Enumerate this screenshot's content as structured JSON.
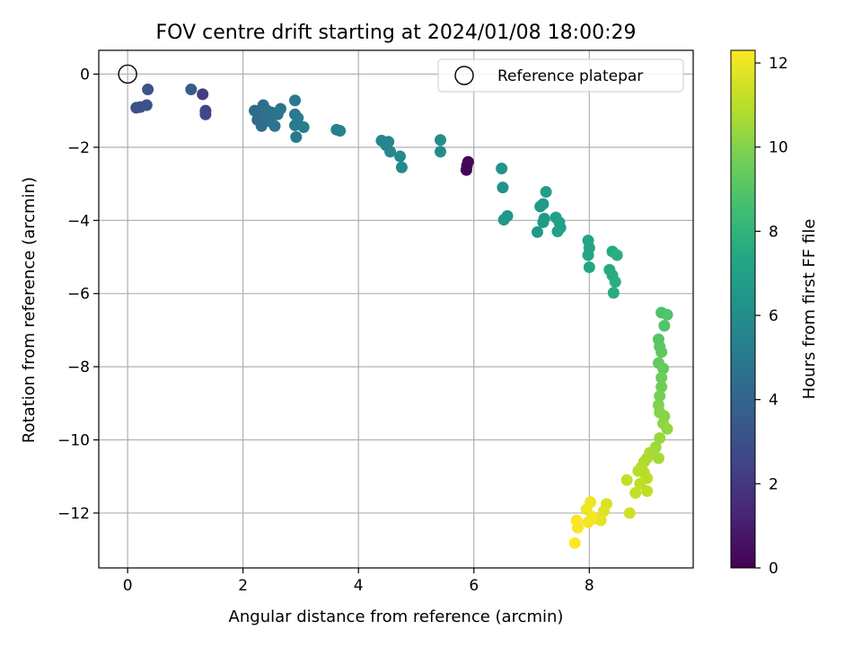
{
  "chart_data": {
    "type": "scatter",
    "title": "FOV centre drift starting at 2024/01/08 18:00:29",
    "xlabel": "Angular distance from reference (arcmin)",
    "ylabel": "Rotation from reference (arcmin)",
    "xlim": [
      -0.5,
      9.8
    ],
    "ylim": [
      -13.5,
      0.65
    ],
    "xticks": [
      0,
      2,
      4,
      6,
      8
    ],
    "yticks": [
      0,
      -2,
      -4,
      -6,
      -8,
      -10,
      -12
    ],
    "grid": true,
    "legend": {
      "placement": "top-right",
      "entries": [
        "Reference platepar"
      ]
    },
    "reference": {
      "x": 0,
      "y": 0,
      "label": "Reference platepar"
    },
    "colorbar": {
      "label": "Hours from first FF file",
      "range": [
        0,
        12.3
      ],
      "ticks": [
        0,
        2,
        4,
        6,
        8,
        10,
        12
      ],
      "colormap": "viridis"
    },
    "points": [
      {
        "x": 5.87,
        "y": -2.62,
        "c": 0.0
      },
      {
        "x": 5.88,
        "y": -2.5,
        "c": 0.1
      },
      {
        "x": 5.9,
        "y": -2.4,
        "c": 0.2
      },
      {
        "x": 1.3,
        "y": -0.55,
        "c": 2.2
      },
      {
        "x": 1.35,
        "y": -1.0,
        "c": 2.6
      },
      {
        "x": 1.35,
        "y": -1.1,
        "c": 2.6
      },
      {
        "x": 0.15,
        "y": -0.92,
        "c": 3.0
      },
      {
        "x": 0.22,
        "y": -0.9,
        "c": 3.0
      },
      {
        "x": 0.33,
        "y": -0.85,
        "c": 3.1
      },
      {
        "x": 0.35,
        "y": -0.42,
        "c": 3.2
      },
      {
        "x": 1.1,
        "y": -0.42,
        "c": 3.5
      },
      {
        "x": 2.2,
        "y": -1.0,
        "c": 4.2
      },
      {
        "x": 2.25,
        "y": -1.25,
        "c": 4.3
      },
      {
        "x": 2.3,
        "y": -1.1,
        "c": 4.3
      },
      {
        "x": 2.32,
        "y": -1.42,
        "c": 4.4
      },
      {
        "x": 2.35,
        "y": -0.85,
        "c": 4.4
      },
      {
        "x": 2.4,
        "y": -1.2,
        "c": 4.5
      },
      {
        "x": 2.42,
        "y": -1.0,
        "c": 4.5
      },
      {
        "x": 2.48,
        "y": -1.3,
        "c": 4.6
      },
      {
        "x": 2.5,
        "y": -1.05,
        "c": 4.6
      },
      {
        "x": 2.55,
        "y": -1.42,
        "c": 4.7
      },
      {
        "x": 2.6,
        "y": -1.1,
        "c": 4.7
      },
      {
        "x": 2.65,
        "y": -0.95,
        "c": 4.8
      },
      {
        "x": 2.9,
        "y": -0.72,
        "c": 4.9
      },
      {
        "x": 2.9,
        "y": -1.1,
        "c": 4.9
      },
      {
        "x": 2.9,
        "y": -1.4,
        "c": 5.0
      },
      {
        "x": 2.92,
        "y": -1.72,
        "c": 5.0
      },
      {
        "x": 2.95,
        "y": -1.2,
        "c": 5.0
      },
      {
        "x": 3.05,
        "y": -1.45,
        "c": 5.1
      },
      {
        "x": 3.62,
        "y": -1.52,
        "c": 5.3
      },
      {
        "x": 3.68,
        "y": -1.55,
        "c": 5.3
      },
      {
        "x": 4.4,
        "y": -1.82,
        "c": 5.5
      },
      {
        "x": 4.48,
        "y": -1.95,
        "c": 5.6
      },
      {
        "x": 4.52,
        "y": -1.85,
        "c": 5.6
      },
      {
        "x": 4.55,
        "y": -2.12,
        "c": 5.7
      },
      {
        "x": 4.72,
        "y": -2.25,
        "c": 5.8
      },
      {
        "x": 4.75,
        "y": -2.55,
        "c": 5.8
      },
      {
        "x": 5.42,
        "y": -1.8,
        "c": 6.0
      },
      {
        "x": 5.42,
        "y": -2.12,
        "c": 6.0
      },
      {
        "x": 6.48,
        "y": -2.58,
        "c": 6.3
      },
      {
        "x": 6.5,
        "y": -3.1,
        "c": 6.3
      },
      {
        "x": 6.52,
        "y": -3.98,
        "c": 6.5
      },
      {
        "x": 6.58,
        "y": -3.88,
        "c": 6.5
      },
      {
        "x": 7.1,
        "y": -4.32,
        "c": 6.6
      },
      {
        "x": 7.15,
        "y": -3.62,
        "c": 6.6
      },
      {
        "x": 7.2,
        "y": -3.55,
        "c": 6.7
      },
      {
        "x": 7.2,
        "y": -4.05,
        "c": 6.7
      },
      {
        "x": 7.22,
        "y": -3.95,
        "c": 6.7
      },
      {
        "x": 7.25,
        "y": -3.22,
        "c": 6.8
      },
      {
        "x": 7.42,
        "y": -3.92,
        "c": 6.9
      },
      {
        "x": 7.45,
        "y": -4.3,
        "c": 6.9
      },
      {
        "x": 7.48,
        "y": -4.05,
        "c": 7.0
      },
      {
        "x": 7.5,
        "y": -4.2,
        "c": 7.0
      },
      {
        "x": 7.98,
        "y": -4.55,
        "c": 7.2
      },
      {
        "x": 8.0,
        "y": -4.75,
        "c": 7.2
      },
      {
        "x": 7.98,
        "y": -4.95,
        "c": 7.3
      },
      {
        "x": 8.0,
        "y": -5.28,
        "c": 7.3
      },
      {
        "x": 8.35,
        "y": -5.35,
        "c": 7.5
      },
      {
        "x": 8.4,
        "y": -4.85,
        "c": 7.5
      },
      {
        "x": 8.4,
        "y": -5.5,
        "c": 7.6
      },
      {
        "x": 8.42,
        "y": -5.98,
        "c": 7.6
      },
      {
        "x": 8.45,
        "y": -5.68,
        "c": 7.7
      },
      {
        "x": 8.48,
        "y": -4.95,
        "c": 7.7
      },
      {
        "x": 9.25,
        "y": -6.52,
        "c": 8.8
      },
      {
        "x": 9.3,
        "y": -6.88,
        "c": 8.9
      },
      {
        "x": 9.35,
        "y": -6.58,
        "c": 8.9
      },
      {
        "x": 9.2,
        "y": -7.25,
        "c": 9.0
      },
      {
        "x": 9.22,
        "y": -7.45,
        "c": 9.1
      },
      {
        "x": 9.25,
        "y": -7.6,
        "c": 9.2
      },
      {
        "x": 9.2,
        "y": -7.9,
        "c": 9.3
      },
      {
        "x": 9.28,
        "y": -8.05,
        "c": 9.4
      },
      {
        "x": 9.25,
        "y": -8.3,
        "c": 9.5
      },
      {
        "x": 9.25,
        "y": -8.55,
        "c": 9.6
      },
      {
        "x": 9.22,
        "y": -8.8,
        "c": 9.7
      },
      {
        "x": 9.2,
        "y": -9.05,
        "c": 9.9
      },
      {
        "x": 9.22,
        "y": -9.25,
        "c": 10.0
      },
      {
        "x": 9.3,
        "y": -9.35,
        "c": 10.1
      },
      {
        "x": 9.28,
        "y": -9.55,
        "c": 10.2
      },
      {
        "x": 9.35,
        "y": -9.7,
        "c": 10.3
      },
      {
        "x": 9.22,
        "y": -9.95,
        "c": 10.4
      },
      {
        "x": 9.15,
        "y": -10.2,
        "c": 10.5
      },
      {
        "x": 9.2,
        "y": -10.5,
        "c": 10.6
      },
      {
        "x": 9.05,
        "y": -10.35,
        "c": 10.7
      },
      {
        "x": 9.0,
        "y": -10.5,
        "c": 10.7
      },
      {
        "x": 8.95,
        "y": -10.6,
        "c": 10.8
      },
      {
        "x": 8.9,
        "y": -10.75,
        "c": 10.9
      },
      {
        "x": 8.95,
        "y": -10.9,
        "c": 10.9
      },
      {
        "x": 8.85,
        "y": -10.85,
        "c": 11.0
      },
      {
        "x": 9.0,
        "y": -11.05,
        "c": 11.0
      },
      {
        "x": 8.88,
        "y": -11.2,
        "c": 11.1
      },
      {
        "x": 9.0,
        "y": -11.4,
        "c": 11.1
      },
      {
        "x": 8.8,
        "y": -11.45,
        "c": 11.2
      },
      {
        "x": 8.65,
        "y": -11.1,
        "c": 11.2
      },
      {
        "x": 8.7,
        "y": -12.0,
        "c": 11.4
      },
      {
        "x": 8.3,
        "y": -11.75,
        "c": 11.6
      },
      {
        "x": 8.25,
        "y": -11.95,
        "c": 11.7
      },
      {
        "x": 8.2,
        "y": -12.2,
        "c": 11.8
      },
      {
        "x": 8.1,
        "y": -12.15,
        "c": 11.9
      },
      {
        "x": 8.02,
        "y": -11.7,
        "c": 12.0
      },
      {
        "x": 7.95,
        "y": -11.9,
        "c": 12.0
      },
      {
        "x": 7.98,
        "y": -12.25,
        "c": 12.1
      },
      {
        "x": 8.05,
        "y": -12.1,
        "c": 12.1
      },
      {
        "x": 7.78,
        "y": -12.2,
        "c": 12.2
      },
      {
        "x": 7.8,
        "y": -12.4,
        "c": 12.2
      },
      {
        "x": 7.75,
        "y": -12.82,
        "c": 12.3
      }
    ]
  }
}
